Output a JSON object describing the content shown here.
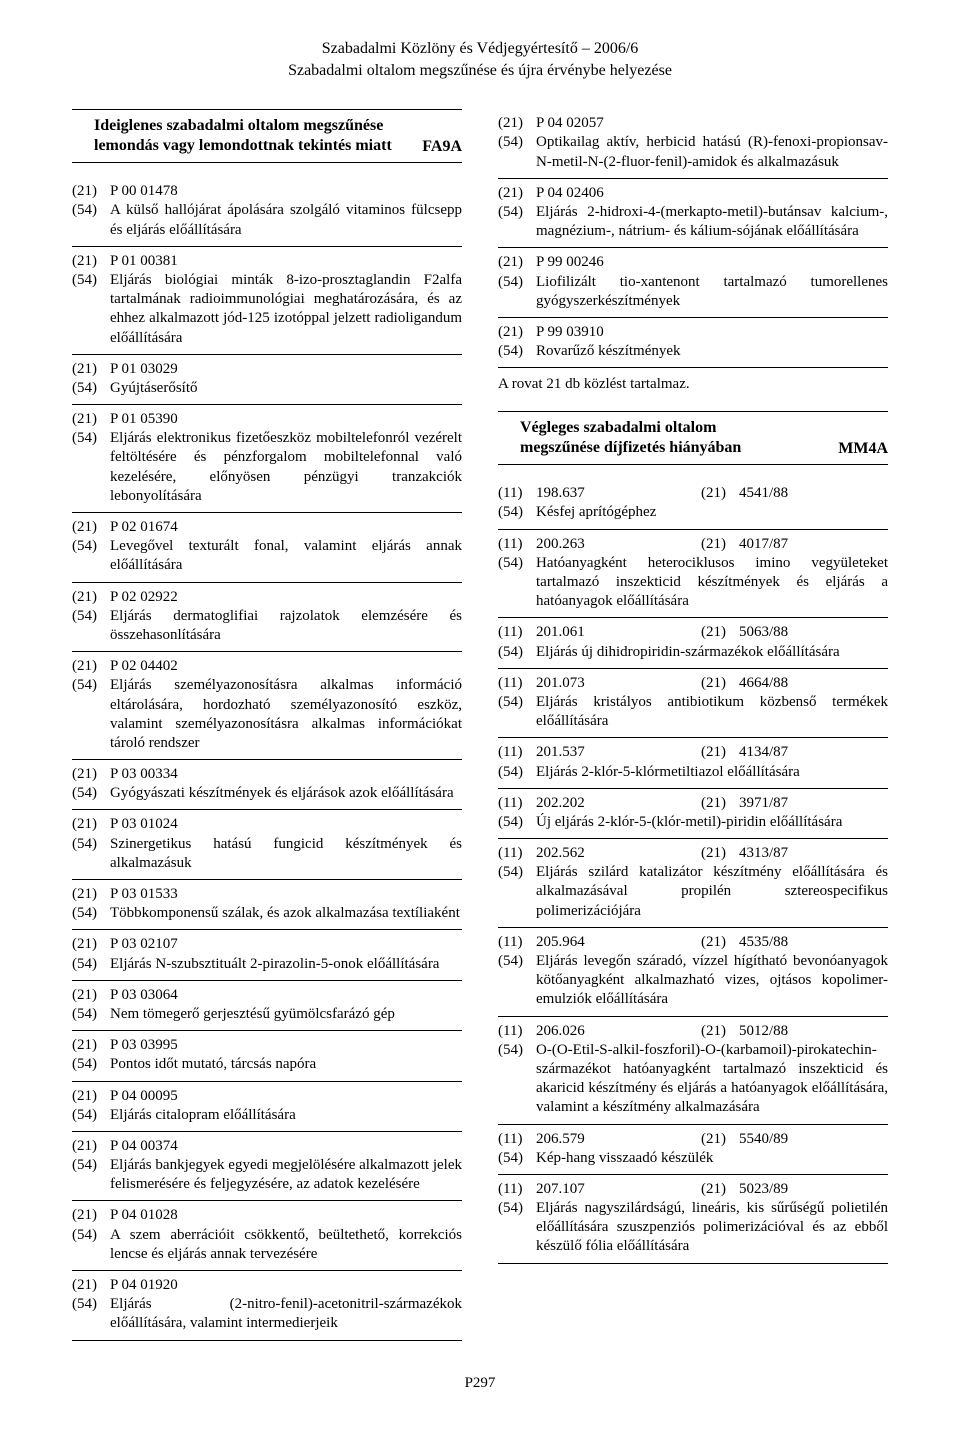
{
  "header": {
    "line1": "Szabadalmi Közlöny és Védjegyértesítő – 2006/6",
    "line2": "Szabadalmi oltalom megszűnése és újra érvénybe helyezése"
  },
  "left": {
    "section": {
      "line1": "Ideiglenes szabadalmi oltalom megszűnése",
      "line2": "lemondás vagy lemondottnak tekintés miatt",
      "code": "FA9A"
    },
    "entries": [
      {
        "n21": "P 00 01478",
        "n54": "A külső hallójárat ápolására szolgáló vitaminos fülcsepp és eljárás előállítására"
      },
      {
        "n21": "P 01 00381",
        "n54": "Eljárás biológiai minták 8-izo-prosztaglandin F2alfa tartalmának radioimmunológiai meghatározására, és az ehhez alkalmazott jód-125 izotóppal jelzett radioligandum előállítására"
      },
      {
        "n21": "P 01 03029",
        "n54": "Gyújtáserősítő"
      },
      {
        "n21": "P 01 05390",
        "n54": "Eljárás elektronikus fizetőeszköz mobiltelefonról vezérelt feltöltésére és pénzforgalom mobiltelefonnal való kezelésére, előnyösen pénzügyi tranzakciók lebonyolítására"
      },
      {
        "n21": "P 02 01674",
        "n54": "Levegővel texturált fonal, valamint eljárás annak előállítására"
      },
      {
        "n21": "P 02 02922",
        "n54": "Eljárás dermatoglifiai rajzolatok elemzésére és összehasonlítására"
      },
      {
        "n21": "P 02 04402",
        "n54": "Eljárás személyazonosításra alkalmas információ eltárolására, hordozható személyazonosító eszköz, valamint személyazonosításra alkalmas információkat tároló rendszer"
      },
      {
        "n21": "P 03 00334",
        "n54": "Gyógyászati készítmények és eljárások azok előállítására"
      },
      {
        "n21": "P 03 01024",
        "n54": "Szinergetikus hatású fungicid készítmények és alkalmazásuk"
      },
      {
        "n21": "P 03 01533",
        "n54": "Többkomponensű szálak, és azok alkalmazása textíliaként"
      },
      {
        "n21": "P 03 02107",
        "n54": "Eljárás N-szubsztituált 2-pirazolin-5-onok előállítására"
      },
      {
        "n21": "P 03 03064",
        "n54": "Nem tömegerő gerjesztésű gyümölcsfarázó gép"
      },
      {
        "n21": "P 03 03995",
        "n54": "Pontos időt mutató, tárcsás napóra"
      },
      {
        "n21": "P 04 00095",
        "n54": "Eljárás citalopram előállítására"
      },
      {
        "n21": "P 04 00374",
        "n54": "Eljárás bankjegyek egyedi megjelölésére alkalmazott jelek felismerésére és feljegyzésére, az adatok kezelésére"
      },
      {
        "n21": "P 04 01028",
        "n54": "A szem aberrációit csökkentő, beültethető, korrekciós lencse és eljárás annak tervezésére"
      },
      {
        "n21": "P 04 01920",
        "n54": "Eljárás (2-nitro-fenil)-acetonitril-származékok előállítására, valamint intermedierjeik"
      }
    ]
  },
  "right_top": {
    "entries": [
      {
        "n21": "P 04 02057",
        "n54": "Optikailag aktív, herbicid hatású (R)-fenoxi-propionsav-N-metil-N-(2-fluor-fenil)-amidok és alkalmazásuk"
      },
      {
        "n21": "P 04 02406",
        "n54": "Eljárás 2-hidroxi-4-(merkapto-metil)-butánsav kalcium-, magnézium-, nátrium- és kálium-sójának előállítására"
      },
      {
        "n21": "P 99 00246",
        "n54": "Liofilizált tio-xantenont tartalmazó tumorellenes gyógyszerkészítmények"
      },
      {
        "n21": "P 99 03910",
        "n54": "Rovarűző készítmények"
      }
    ],
    "rovat": "A rovat 21 db közlést tartalmaz."
  },
  "right_section": {
    "line1": "Végleges szabadalmi oltalom",
    "line2": "megszűnése díjfizetés hiányában",
    "code": "MM4A"
  },
  "right_entries": [
    {
      "n11": "198.637",
      "n21": "4541/88",
      "n54": "Késfej aprítógéphez"
    },
    {
      "n11": "200.263",
      "n21": "4017/87",
      "n54": "Hatóanyagként heterociklusos imino vegyületeket tartalmazó inszekticid készítmények és eljárás a hatóanyagok előállítására"
    },
    {
      "n11": "201.061",
      "n21": "5063/88",
      "n54": "Eljárás új dihidropiridin-származékok előállítására"
    },
    {
      "n11": "201.073",
      "n21": "4664/88",
      "n54": "Eljárás kristályos antibiotikum közbenső termékek előállítására"
    },
    {
      "n11": "201.537",
      "n21": "4134/87",
      "n54": "Eljárás 2-klór-5-klórmetiltiazol előállítására"
    },
    {
      "n11": "202.202",
      "n21": "3971/87",
      "n54": "Új eljárás 2-klór-5-(klór-metil)-piridin előállítására"
    },
    {
      "n11": "202.562",
      "n21": "4313/87",
      "n54": "Eljárás szilárd katalizátor készítmény előállítására és alkalmazásával propilén sztereospecifikus polimerizációjára"
    },
    {
      "n11": "205.964",
      "n21": "4535/88",
      "n54": "Eljárás levegőn száradó, vízzel hígítható bevonóanyagok kötőanyagként alkalmazható vizes, ojtásos kopolimer-emulziók előállítására"
    },
    {
      "n11": "206.026",
      "n21": "5012/88",
      "n54": "O-(O-Etil-S-alkil-foszforil)-O-(karbamoil)-pirokatechin-származékot hatóanyagként tartalmazó inszekticid és akaricid készítmény és eljárás a hatóanyagok előállítására, valamint a készítmény alkalmazására"
    },
    {
      "n11": "206.579",
      "n21": "5540/89",
      "n54": "Kép-hang visszaadó készülék"
    },
    {
      "n11": "207.107",
      "n21": "5023/89",
      "n54": "Eljárás nagyszilárdságú, lineáris, kis sűrűségű polietilén előállítására szuszpenziós polimerizációval és az ebből készülő fólia előállítására"
    }
  ],
  "footer": "P297",
  "labels": {
    "t11": "(11)",
    "t21": "(21)",
    "t54": "(54)"
  }
}
